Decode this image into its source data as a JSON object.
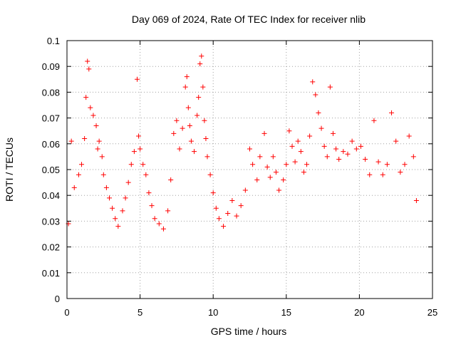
{
  "chart_data": {
    "type": "scatter",
    "title": "Day 069 of 2024, Rate Of TEC Index for receiver nlib",
    "xlabel": "GPS time / hours",
    "ylabel": "ROTI / TECUs",
    "xlim": [
      0,
      25
    ],
    "ylim": [
      0,
      0.1
    ],
    "x_ticks": [
      0,
      5,
      10,
      15,
      20,
      25
    ],
    "x_tick_labels": [
      "0",
      "5",
      "10",
      "15",
      "20",
      "25"
    ],
    "y_ticks": [
      0,
      0.01,
      0.02,
      0.03,
      0.04,
      0.05,
      0.06,
      0.07,
      0.08,
      0.09,
      0.1
    ],
    "y_tick_labels": [
      "0",
      "0.01",
      "0.02",
      "0.03",
      "0.04",
      "0.05",
      "0.06",
      "0.07",
      "0.08",
      "0.09",
      "0.1"
    ],
    "grid": true,
    "marker": "+",
    "color": "#ff0000",
    "series": [
      {
        "name": "ROTI",
        "x": [
          0.1,
          0.3,
          0.5,
          0.8,
          1.0,
          1.2,
          1.3,
          1.4,
          1.5,
          1.6,
          1.8,
          2.0,
          2.1,
          2.2,
          2.4,
          2.5,
          2.7,
          2.9,
          3.1,
          3.3,
          3.5,
          3.8,
          4.0,
          4.2,
          4.4,
          4.6,
          4.8,
          4.9,
          5.0,
          5.2,
          5.4,
          5.6,
          5.8,
          6.0,
          6.3,
          6.6,
          6.9,
          7.1,
          7.3,
          7.5,
          7.7,
          7.9,
          8.1,
          8.2,
          8.3,
          8.4,
          8.5,
          8.7,
          8.9,
          9.0,
          9.1,
          9.2,
          9.3,
          9.4,
          9.5,
          9.6,
          9.8,
          10.0,
          10.2,
          10.4,
          10.7,
          11.0,
          11.3,
          11.6,
          11.9,
          12.2,
          12.5,
          12.7,
          13.0,
          13.2,
          13.5,
          13.7,
          13.9,
          14.1,
          14.3,
          14.5,
          14.8,
          15.0,
          15.2,
          15.4,
          15.6,
          15.8,
          16.0,
          16.2,
          16.4,
          16.6,
          16.8,
          17.0,
          17.2,
          17.4,
          17.6,
          17.8,
          18.0,
          18.2,
          18.4,
          18.6,
          18.9,
          19.2,
          19.5,
          19.8,
          20.1,
          20.4,
          20.7,
          21.0,
          21.3,
          21.6,
          21.9,
          22.2,
          22.5,
          22.8,
          23.1,
          23.4,
          23.7,
          23.9
        ],
        "y": [
          0.029,
          0.061,
          0.043,
          0.048,
          0.052,
          0.062,
          0.078,
          0.092,
          0.089,
          0.074,
          0.071,
          0.067,
          0.058,
          0.061,
          0.055,
          0.048,
          0.043,
          0.039,
          0.035,
          0.031,
          0.028,
          0.034,
          0.039,
          0.045,
          0.052,
          0.057,
          0.085,
          0.063,
          0.058,
          0.052,
          0.048,
          0.041,
          0.036,
          0.031,
          0.029,
          0.027,
          0.034,
          0.046,
          0.064,
          0.069,
          0.058,
          0.066,
          0.082,
          0.086,
          0.074,
          0.067,
          0.061,
          0.057,
          0.071,
          0.078,
          0.091,
          0.094,
          0.082,
          0.069,
          0.062,
          0.055,
          0.048,
          0.041,
          0.035,
          0.031,
          0.028,
          0.033,
          0.038,
          0.032,
          0.036,
          0.042,
          0.058,
          0.052,
          0.046,
          0.055,
          0.064,
          0.051,
          0.047,
          0.055,
          0.049,
          0.042,
          0.046,
          0.052,
          0.065,
          0.059,
          0.053,
          0.061,
          0.057,
          0.049,
          0.052,
          0.063,
          0.084,
          0.079,
          0.072,
          0.066,
          0.059,
          0.055,
          0.082,
          0.064,
          0.058,
          0.054,
          0.057,
          0.056,
          0.061,
          0.058,
          0.059,
          0.054,
          0.048,
          0.069,
          0.053,
          0.048,
          0.052,
          0.072,
          0.061,
          0.049,
          0.052,
          0.063,
          0.055,
          0.038
        ]
      }
    ]
  }
}
